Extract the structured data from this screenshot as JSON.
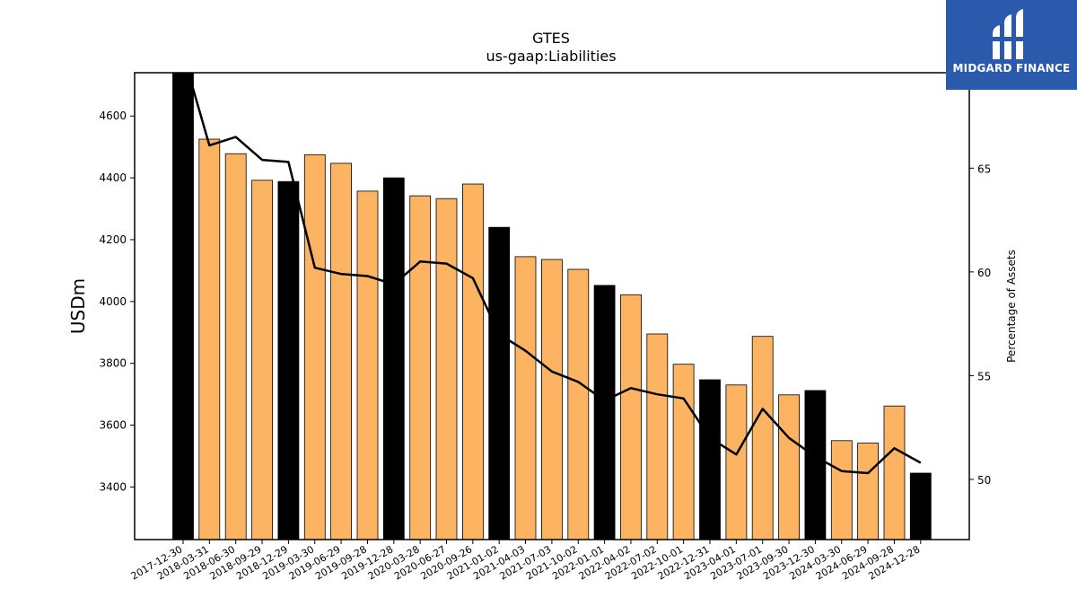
{
  "brand": {
    "name": "MIDGARD FINANCE",
    "icon": "midgard-logo-icon",
    "color": "#2b5aad"
  },
  "colors": {
    "bar_normal": "#fdb462",
    "bar_highlight": "#000000",
    "line": "#000000"
  },
  "chart_data": {
    "type": "bar",
    "title": "GTES",
    "subtitle": "us-gaap:Liabilities",
    "ylabel": "USDm",
    "y2label": "Percentage of Assets",
    "ylim": [
      3230,
      4740
    ],
    "y2lim": [
      47.1,
      69.6
    ],
    "yticks": [
      3400,
      3600,
      3800,
      4000,
      4200,
      4400,
      4600
    ],
    "y2ticks": [
      50,
      55,
      60,
      65
    ],
    "grid": false,
    "categories": [
      "2017-12-30",
      "2018-03-31",
      "2018-06-30",
      "2018-09-29",
      "2018-12-29",
      "2019-03-30",
      "2019-06-29",
      "2019-09-28",
      "2019-12-28",
      "2020-03-28",
      "2020-06-27",
      "2020-09-26",
      "2021-01-02",
      "2021-04-03",
      "2021-07-03",
      "2021-10-02",
      "2022-01-01",
      "2022-04-02",
      "2022-07-02",
      "2022-10-01",
      "2022-12-31",
      "2023-04-01",
      "2023-07-01",
      "2023-09-30",
      "2023-12-30",
      "2024-03-30",
      "2024-06-29",
      "2024-09-28",
      "2024-12-28"
    ],
    "series": [
      {
        "type": "bar",
        "values": [
          4740,
          4525,
          4478,
          4392,
          4388,
          4475,
          4447,
          4357,
          4400,
          4342,
          4333,
          4380,
          4240,
          4145,
          4136,
          4104,
          4052,
          4022,
          3895,
          3797,
          3747,
          3730,
          3887,
          3698,
          3712,
          3550,
          3542,
          3662,
          3445
        ],
        "highlight": [
          true,
          false,
          false,
          false,
          true,
          false,
          false,
          false,
          true,
          false,
          false,
          false,
          true,
          false,
          false,
          false,
          true,
          false,
          false,
          false,
          true,
          false,
          false,
          false,
          true,
          false,
          false,
          false,
          true
        ]
      },
      {
        "type": "line",
        "axis": "right",
        "values": [
          70.5,
          66.1,
          66.5,
          65.4,
          65.3,
          60.2,
          59.9,
          59.8,
          59.4,
          60.5,
          60.4,
          59.7,
          57.0,
          56.2,
          55.2,
          54.7,
          53.8,
          54.4,
          54.1,
          53.9,
          52.0,
          51.2,
          53.4,
          52.0,
          51.1,
          50.4,
          50.3,
          51.5,
          50.8
        ]
      }
    ]
  }
}
